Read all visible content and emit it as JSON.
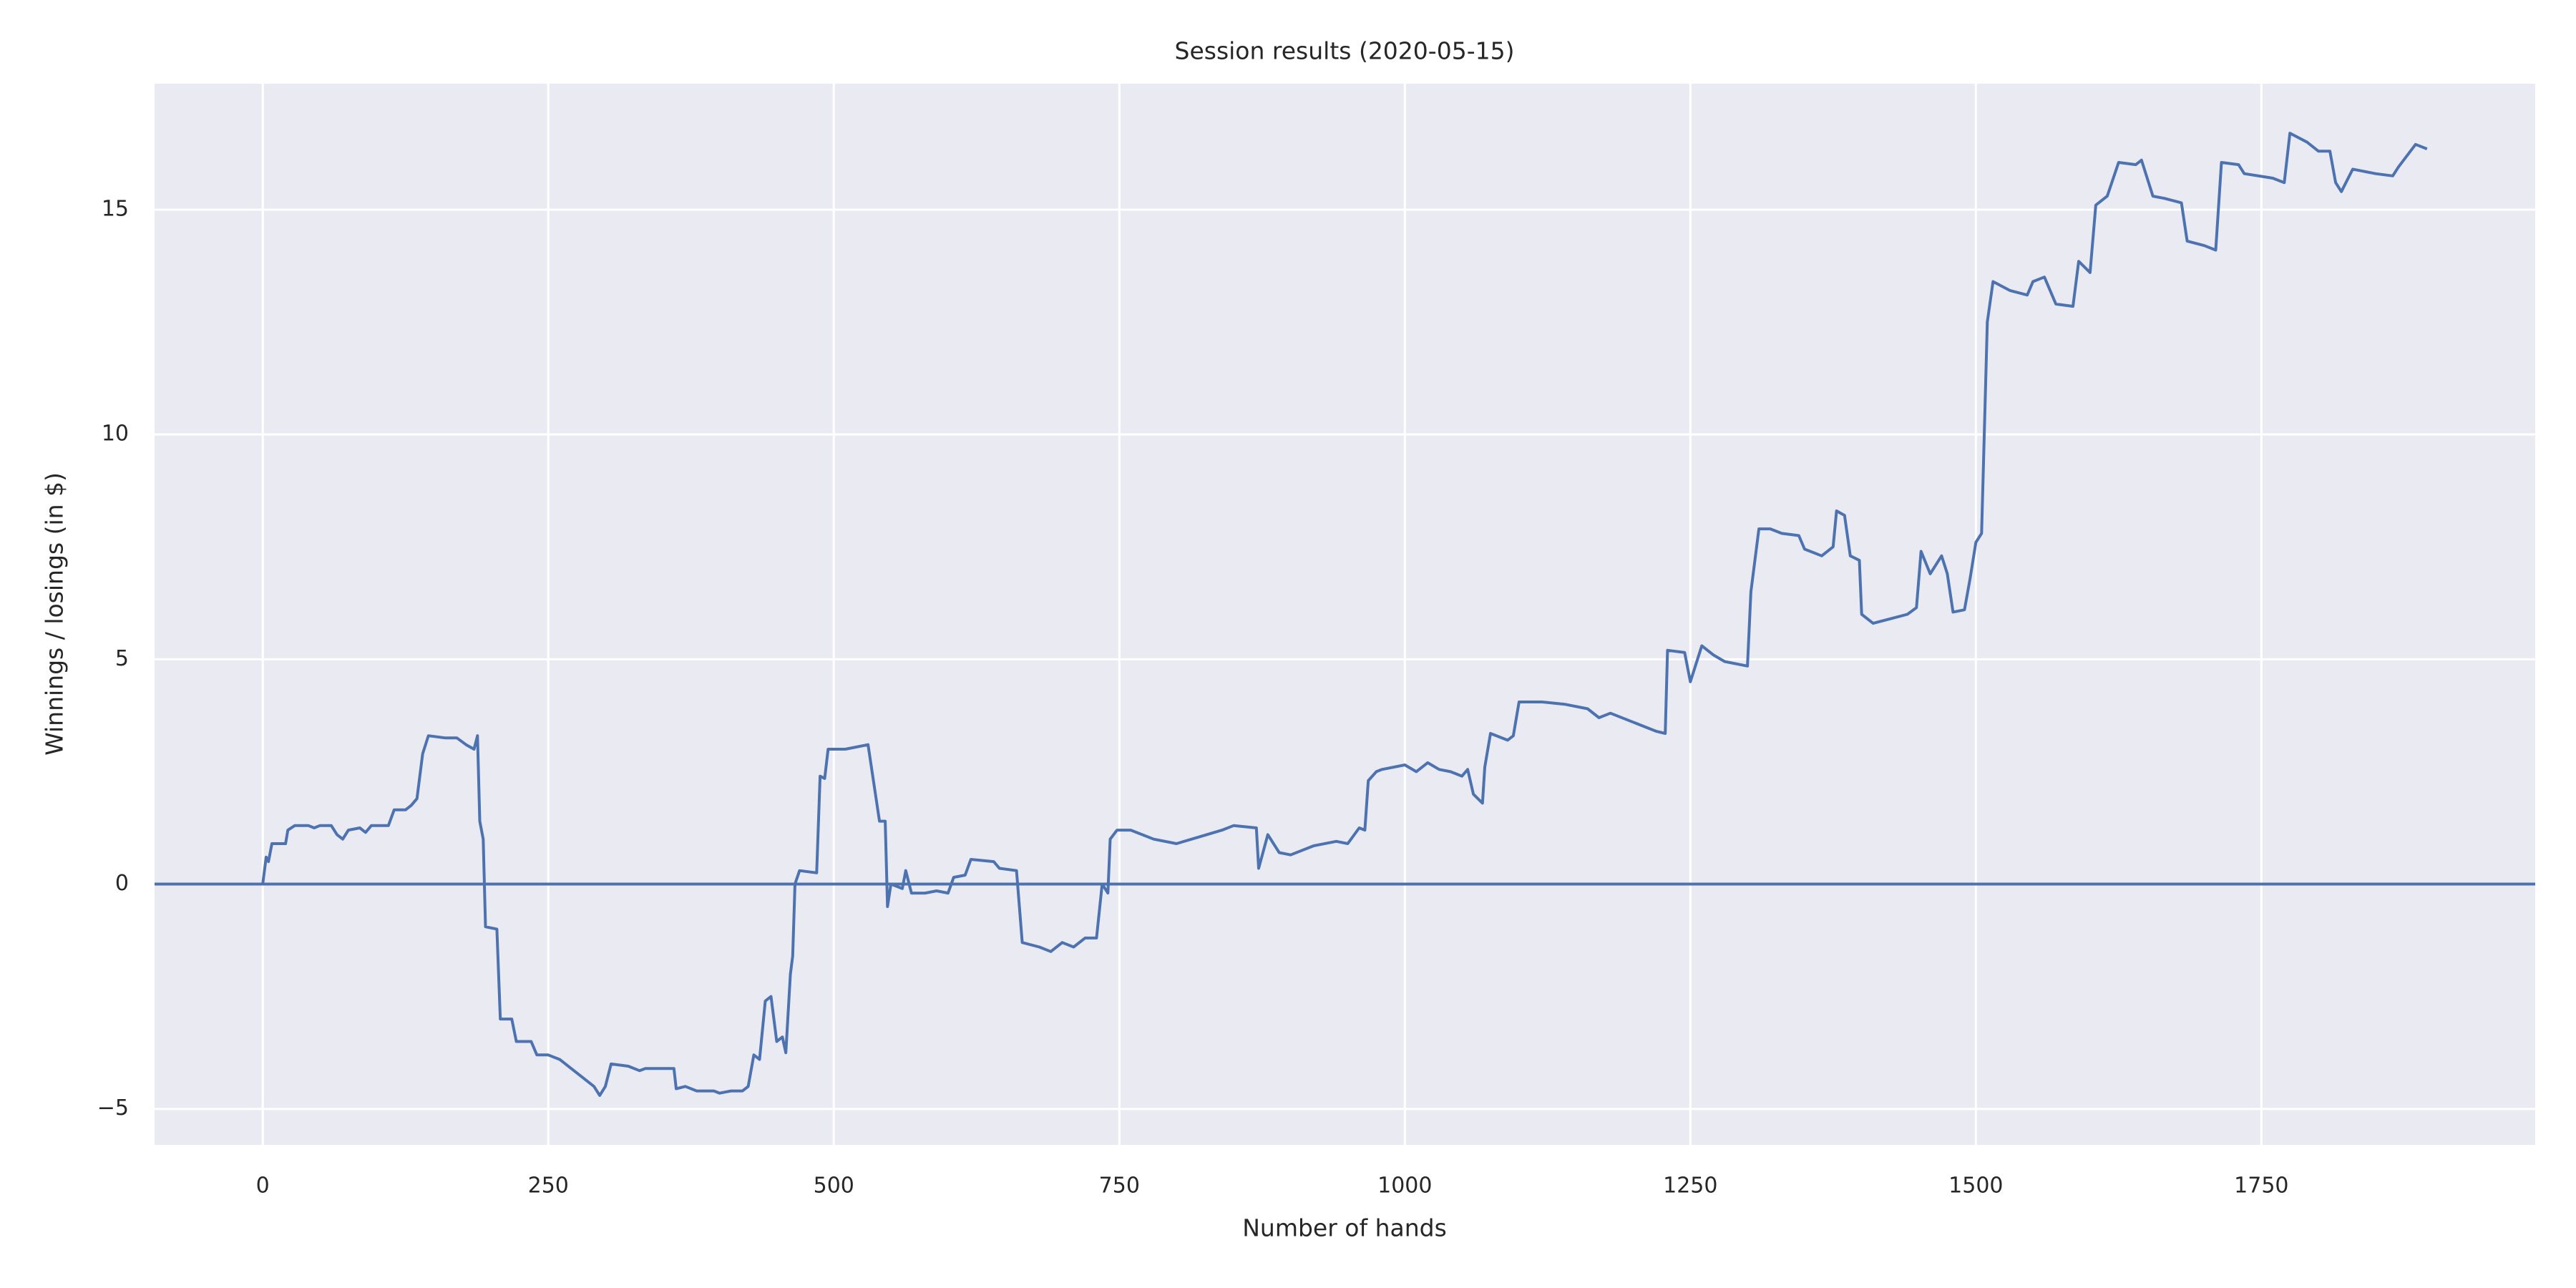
{
  "chart_data": {
    "type": "line",
    "title": "Session results (2020-05-15)",
    "xlabel": "Number of hands",
    "ylabel": "Winnings / losings (in $)",
    "background": "#eaeaf2",
    "grid": true,
    "hline": 0,
    "xlim": [
      -94.75,
      1989.75
    ],
    "ylim": [
      -5.8,
      17.8
    ],
    "xticks": [
      0,
      250,
      500,
      750,
      1000,
      1250,
      1500,
      1750
    ],
    "yticks": [
      {
        "value": -5,
        "label": "−5"
      },
      0,
      5,
      10,
      15
    ],
    "x": [
      0,
      3,
      5,
      8,
      20,
      22,
      28,
      40,
      45,
      50,
      60,
      65,
      70,
      75,
      85,
      90,
      95,
      110,
      115,
      125,
      130,
      135,
      140,
      145,
      160,
      170,
      178,
      185,
      188,
      190,
      193,
      195,
      205,
      208,
      218,
      222,
      235,
      240,
      250,
      260,
      270,
      280,
      290,
      295,
      300,
      305,
      320,
      330,
      335,
      360,
      362,
      370,
      380,
      395,
      400,
      410,
      420,
      425,
      430,
      435,
      440,
      445,
      450,
      455,
      458,
      462,
      464,
      466,
      470,
      485,
      488,
      492,
      495,
      510,
      520,
      530,
      540,
      545,
      547,
      550,
      560,
      563,
      568,
      580,
      590,
      600,
      605,
      615,
      620,
      640,
      645,
      660,
      665,
      680,
      690,
      700,
      710,
      720,
      730,
      735,
      740,
      742,
      748,
      760,
      780,
      800,
      820,
      840,
      850,
      870,
      872,
      880,
      890,
      900,
      920,
      940,
      950,
      960,
      965,
      968,
      975,
      980,
      1000,
      1010,
      1020,
      1030,
      1040,
      1050,
      1055,
      1060,
      1068,
      1070,
      1075,
      1090,
      1095,
      1100,
      1120,
      1140,
      1160,
      1170,
      1180,
      1200,
      1220,
      1228,
      1230,
      1245,
      1250,
      1260,
      1270,
      1280,
      1300,
      1303,
      1310,
      1320,
      1330,
      1345,
      1350,
      1365,
      1375,
      1378,
      1385,
      1390,
      1398,
      1400,
      1410,
      1425,
      1440,
      1448,
      1452,
      1460,
      1470,
      1475,
      1480,
      1490,
      1495,
      1500,
      1505,
      1510,
      1515,
      1530,
      1545,
      1550,
      1560,
      1570,
      1585,
      1590,
      1600,
      1605,
      1615,
      1625,
      1640,
      1645,
      1655,
      1665,
      1680,
      1685,
      1700,
      1710,
      1715,
      1730,
      1735,
      1760,
      1770,
      1775,
      1790,
      1800,
      1810,
      1815,
      1820,
      1830,
      1850,
      1865,
      1870,
      1885,
      1895
    ],
    "series": [
      {
        "color": "#4c72b0",
        "values": [
          0,
          0.6,
          0.5,
          0.9,
          0.9,
          1.2,
          1.3,
          1.3,
          1.25,
          1.3,
          1.3,
          1.1,
          1.0,
          1.2,
          1.25,
          1.15,
          1.3,
          1.3,
          1.65,
          1.65,
          1.75,
          1.9,
          2.9,
          3.3,
          3.25,
          3.25,
          3.1,
          3.0,
          3.3,
          1.4,
          1.0,
          -0.95,
          -1.0,
          -3.0,
          -3.0,
          -3.5,
          -3.5,
          -3.8,
          -3.8,
          -3.9,
          -4.1,
          -4.3,
          -4.5,
          -4.7,
          -4.5,
          -4.0,
          -4.05,
          -4.15,
          -4.1,
          -4.1,
          -4.55,
          -4.5,
          -4.6,
          -4.6,
          -4.65,
          -4.6,
          -4.6,
          -4.5,
          -3.8,
          -3.9,
          -2.6,
          -2.5,
          -3.5,
          -3.4,
          -3.75,
          -2.0,
          -1.6,
          0.0,
          0.3,
          0.25,
          2.4,
          2.35,
          3.0,
          3.0,
          3.05,
          3.1,
          1.4,
          1.4,
          -0.5,
          0.0,
          -0.1,
          0.3,
          -0.2,
          -0.2,
          -0.15,
          -0.2,
          0.15,
          0.2,
          0.55,
          0.5,
          0.35,
          0.3,
          -1.3,
          -1.4,
          -1.5,
          -1.3,
          -1.4,
          -1.2,
          -1.2,
          0.0,
          -0.2,
          1.0,
          1.2,
          1.2,
          1.0,
          0.9,
          1.05,
          1.2,
          1.3,
          1.25,
          0.35,
          1.1,
          0.7,
          0.65,
          0.85,
          0.95,
          0.9,
          1.25,
          1.2,
          2.3,
          2.5,
          2.55,
          2.65,
          2.5,
          2.7,
          2.55,
          2.5,
          2.4,
          2.55,
          2.0,
          1.8,
          2.6,
          3.35,
          3.2,
          3.3,
          4.05,
          4.05,
          4.0,
          3.9,
          3.7,
          3.8,
          3.6,
          3.4,
          3.35,
          5.2,
          5.15,
          4.5,
          5.3,
          5.1,
          4.95,
          4.85,
          6.5,
          7.9,
          7.9,
          7.8,
          7.75,
          7.45,
          7.3,
          7.5,
          8.3,
          8.2,
          7.3,
          7.2,
          6.0,
          5.8,
          5.9,
          6.0,
          6.15,
          7.4,
          6.9,
          7.3,
          6.9,
          6.05,
          6.1,
          6.8,
          7.6,
          7.8,
          12.5,
          13.4,
          13.2,
          13.1,
          13.4,
          13.5,
          12.9,
          12.85,
          13.85,
          13.6,
          15.1,
          15.3,
          16.05,
          16.0,
          16.1,
          15.3,
          15.25,
          15.15,
          14.3,
          14.2,
          14.1,
          16.05,
          16.0,
          15.8,
          15.7,
          15.6,
          16.7,
          16.5,
          16.3,
          16.3,
          15.6,
          15.4,
          15.9,
          15.8,
          15.75,
          15.95,
          16.45,
          16.35
        ]
      }
    ]
  }
}
